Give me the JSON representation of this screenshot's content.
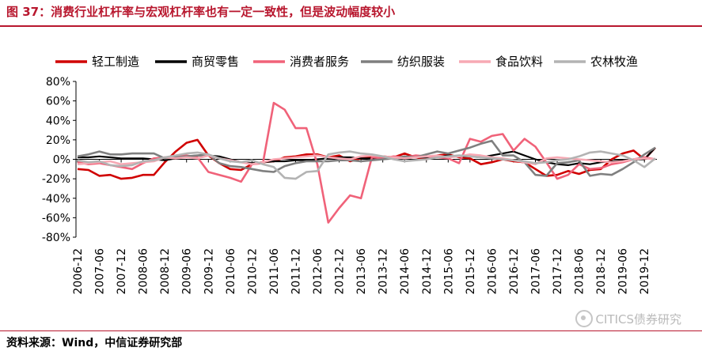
{
  "header": {
    "title": "图 37：消费行业杠杆率与宏观杠杆率也有一定一致性，但是波动幅度较小"
  },
  "footer": {
    "source": "资料来源：Wind，中信证券研究部"
  },
  "watermark": {
    "text": "CITICS债券研究",
    "icon": "wechat-icon"
  },
  "chart_data": {
    "type": "line",
    "title": "",
    "xlabel": "",
    "ylabel": "",
    "ylim": [
      -80,
      80
    ],
    "yticks": [
      "80%",
      "60%",
      "40%",
      "20%",
      "0%",
      "-20%",
      "-40%",
      "-60%",
      "-80%"
    ],
    "ytick_values": [
      80,
      60,
      40,
      20,
      0,
      -20,
      -40,
      -60,
      -80
    ],
    "x_tick_labels": [
      "2006-12",
      "2007-06",
      "2007-12",
      "2008-06",
      "2008-12",
      "2009-06",
      "2009-12",
      "2010-06",
      "2010-12",
      "2011-06",
      "2011-12",
      "2012-06",
      "2012-12",
      "2013-06",
      "2013-12",
      "2014-06",
      "2014-12",
      "2015-06",
      "2015-12",
      "2016-06",
      "2016-12",
      "2017-06",
      "2017-12",
      "2018-06",
      "2018-12",
      "2019-06",
      "2019-12"
    ],
    "x_start": "2006-12",
    "x_step_months": 3,
    "legend_position": "top",
    "grid": false,
    "series": [
      {
        "name": "轻工制造",
        "color": "#d00000",
        "width": 2.6,
        "values": [
          -10,
          -11,
          -17,
          -16,
          -20,
          -19,
          -16,
          -16,
          -3,
          8,
          17,
          20,
          4,
          -4,
          -10,
          -11,
          -5,
          -3,
          -2,
          2,
          3,
          5,
          5,
          2,
          4,
          -2,
          1,
          3,
          3,
          2,
          6,
          2,
          0,
          4,
          5,
          2,
          1,
          -5,
          -3,
          0,
          -2,
          -3,
          -10,
          -17,
          -16,
          -12,
          -15,
          -11,
          -10,
          0,
          6,
          9,
          0,
          12
        ]
      },
      {
        "name": "商贸零售",
        "color": "#000000",
        "width": 2.2,
        "values": [
          2,
          2,
          3,
          2,
          1,
          1,
          1,
          0,
          -1,
          1,
          3,
          4,
          4,
          3,
          0,
          -3,
          -4,
          -3,
          -2,
          -2,
          -1,
          -1,
          0,
          1,
          2,
          2,
          1,
          1,
          0,
          2,
          1,
          2,
          2,
          2,
          4,
          3,
          3,
          2,
          4,
          6,
          8,
          4,
          0,
          -3,
          -5,
          -6,
          -4,
          -5,
          -3,
          -2,
          -1,
          0,
          0,
          12
        ]
      },
      {
        "name": "消费者服务",
        "color": "#f06279",
        "width": 2.6,
        "values": [
          -3,
          -5,
          -4,
          -6,
          -8,
          -10,
          -4,
          1,
          2,
          3,
          4,
          2,
          -13,
          -16,
          -19,
          -23,
          -5,
          -4,
          58,
          51,
          32,
          32,
          -5,
          -65,
          -50,
          -37,
          -40,
          2,
          1,
          3,
          2,
          4,
          3,
          2,
          1,
          -4,
          21,
          18,
          24,
          26,
          9,
          21,
          13,
          -3,
          -20,
          -16,
          -5,
          -10,
          -9,
          -5,
          -3,
          0,
          2,
          0
        ]
      },
      {
        "name": "纺织服装",
        "color": "#7f7f7f",
        "width": 2.6,
        "values": [
          3,
          5,
          8,
          5,
          5,
          6,
          6,
          6,
          1,
          2,
          3,
          4,
          5,
          -4,
          -7,
          -8,
          -10,
          -12,
          -13,
          -7,
          -4,
          -2,
          -2,
          -2,
          -1,
          -1,
          -2,
          -1,
          0,
          1,
          3,
          2,
          5,
          8,
          6,
          9,
          12,
          16,
          19,
          4,
          4,
          -3,
          -16,
          -17,
          -4,
          -3,
          -1,
          -17,
          -15,
          -16,
          -10,
          -3,
          5,
          12
        ]
      },
      {
        "name": "食品饮料",
        "color": "#f7a9b4",
        "width": 2.6,
        "values": [
          -5,
          -4,
          -3,
          -2,
          -5,
          -4,
          -3,
          -2,
          2,
          1,
          2,
          1,
          4,
          1,
          -1,
          -3,
          -5,
          -3,
          0,
          1,
          2,
          3,
          4,
          2,
          1,
          0,
          3,
          4,
          3,
          2,
          1,
          2,
          3,
          4,
          2,
          3,
          5,
          4,
          2,
          1,
          -1,
          -3,
          -5,
          1,
          2,
          1,
          0,
          -1,
          -2,
          -3,
          -2,
          0,
          1,
          0
        ]
      },
      {
        "name": "农林牧渔",
        "color": "#b3b3b3",
        "width": 2.6,
        "values": [
          -1,
          -3,
          -2,
          -6,
          -7,
          -6,
          -2,
          -1,
          2,
          4,
          6,
          7,
          5,
          1,
          -2,
          -3,
          -1,
          -5,
          -8,
          -19,
          -20,
          -13,
          -12,
          5,
          7,
          8,
          6,
          5,
          3,
          0,
          -2,
          -1,
          0,
          2,
          3,
          4,
          3,
          2,
          1,
          0,
          -1,
          -2,
          -4,
          -3,
          -1,
          0,
          3,
          7,
          8,
          6,
          4,
          -1,
          -8,
          1
        ]
      }
    ]
  }
}
